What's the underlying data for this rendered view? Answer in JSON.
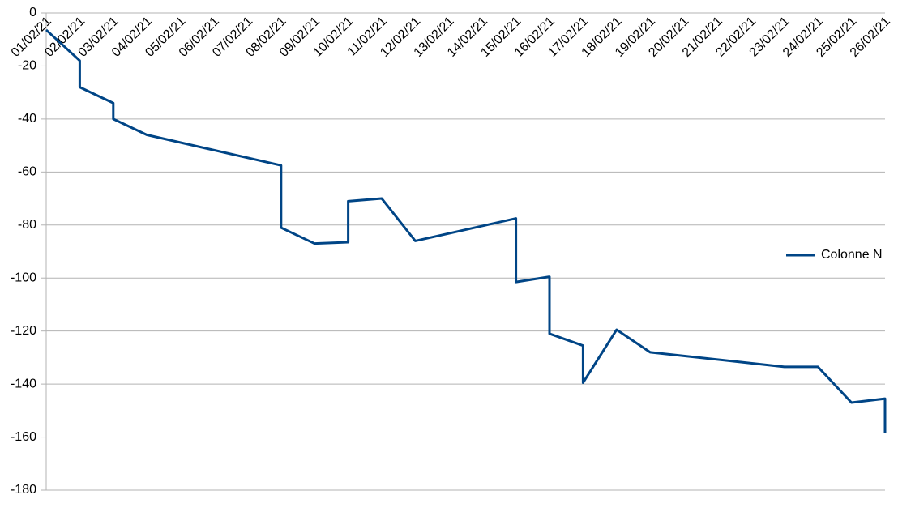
{
  "chart_data": {
    "type": "line",
    "xticks": [
      "01/02/21",
      "02/02/21",
      "03/02/21",
      "04/02/21",
      "05/02/21",
      "06/02/21",
      "07/02/21",
      "08/02/21",
      "09/02/21",
      "10/02/21",
      "11/02/21",
      "12/02/21",
      "13/02/21",
      "14/02/21",
      "15/02/21",
      "16/02/21",
      "17/02/21",
      "18/02/21",
      "19/02/21",
      "20/02/21",
      "21/02/21",
      "22/02/21",
      "23/02/21",
      "24/02/21",
      "25/02/21",
      "26/02/21"
    ],
    "series": [
      {
        "name": "Colonne N",
        "color": "#004586",
        "x": [
          "01/02/21",
          "02/02/21",
          "02/02/21",
          "03/02/21",
          "03/02/21",
          "04/02/21",
          "08/02/21",
          "08/02/21",
          "09/02/21",
          "10/02/21",
          "10/02/21",
          "11/02/21",
          "12/02/21",
          "15/02/21",
          "15/02/21",
          "16/02/21",
          "16/02/21",
          "17/02/21",
          "17/02/21",
          "18/02/21",
          "19/02/21",
          "23/02/21",
          "24/02/21",
          "25/02/21",
          "26/02/21",
          "26/02/21"
        ],
        "values": [
          -6.4,
          -18,
          -28,
          -34,
          -40,
          -46,
          -57.5,
          -81,
          -87,
          -86.5,
          -71,
          -70,
          -86,
          -77.5,
          -101.5,
          -99.5,
          -121,
          -125.5,
          -139.5,
          -119.5,
          -128,
          -133.5,
          -133.5,
          -147,
          -145.5,
          -158.5
        ]
      }
    ],
    "ylim": [
      -180,
      0
    ],
    "yticks": [
      0,
      -20,
      -40,
      -60,
      -80,
      -100,
      -120,
      -140,
      -160,
      -180
    ],
    "grid": true,
    "legend": "right"
  }
}
